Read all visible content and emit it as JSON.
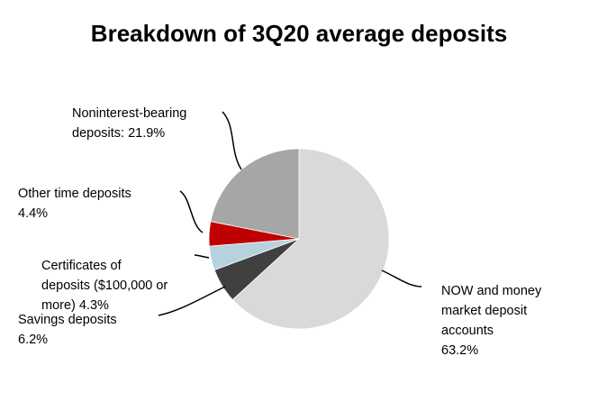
{
  "chart_data": {
    "type": "pie",
    "title": "Breakdown of 3Q20 average deposits",
    "slices": [
      {
        "key": "now",
        "label_lines": [
          "NOW and money",
          "market deposit",
          "accounts",
          "63.2%"
        ],
        "value": 63.2,
        "color": "#d9d9d9"
      },
      {
        "key": "savings",
        "label_lines": [
          "Savings deposits",
          "6.2%"
        ],
        "value": 6.2,
        "color": "#404040"
      },
      {
        "key": "cds",
        "label_lines": [
          "Certificates of",
          "deposits ($100,000 or",
          "more) 4.3%"
        ],
        "value": 4.3,
        "color": "#b8d1de"
      },
      {
        "key": "other",
        "label_lines": [
          "Other time deposits",
          "4.4%"
        ],
        "value": 4.4,
        "color": "#c00000"
      },
      {
        "key": "nib",
        "label_lines": [
          "Noninterest-bearing",
          "deposits: 21.9%"
        ],
        "value": 21.9,
        "color": "#a6a6a6"
      }
    ]
  }
}
